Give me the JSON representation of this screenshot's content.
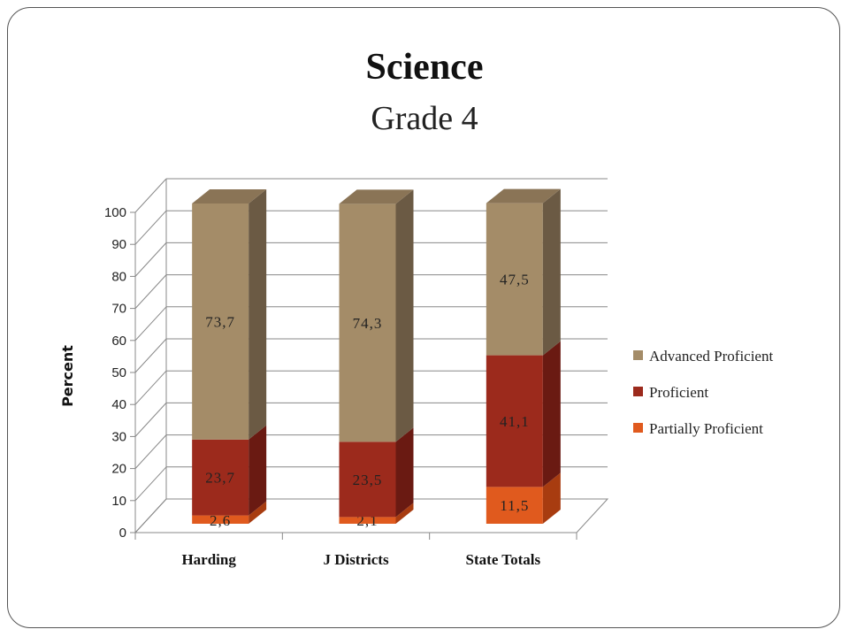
{
  "slide": {
    "title": "Science",
    "subtitle": "Grade 4"
  },
  "chart_data": {
    "type": "bar",
    "stacked": true,
    "three_d": true,
    "title": "",
    "xlabel": "",
    "ylabel": "Percent",
    "ylim": [
      0,
      100
    ],
    "yticks": [
      0,
      10,
      20,
      30,
      40,
      50,
      60,
      70,
      80,
      90,
      100
    ],
    "grid": true,
    "legend_position": "right",
    "categories": [
      "Harding",
      "J Districts",
      "State Totals"
    ],
    "series": [
      {
        "name": "Partially Proficient",
        "values": [
          2.6,
          2.1,
          11.5
        ],
        "labels": [
          "2,6",
          "2,1",
          "11,5"
        ],
        "color": "#e05a1e",
        "side_color": "#a83c10",
        "top_color": "#f07a40"
      },
      {
        "name": "Proficient",
        "values": [
          23.7,
          23.5,
          41.1
        ],
        "labels": [
          "23,7",
          "23,5",
          "41,1"
        ],
        "color": "#9c2a1c",
        "side_color": "#6a1a12",
        "top_color": "#b84030"
      },
      {
        "name": "Advanced Proficient",
        "values": [
          73.7,
          74.3,
          47.5
        ],
        "labels": [
          "73,7",
          "74,3",
          "47,5"
        ],
        "color": "#a48c68",
        "side_color": "#6b5a44",
        "top_color": "#8a7456"
      }
    ],
    "legend_order": [
      "Advanced Proficient",
      "Proficient",
      "Partially Proficient"
    ]
  }
}
